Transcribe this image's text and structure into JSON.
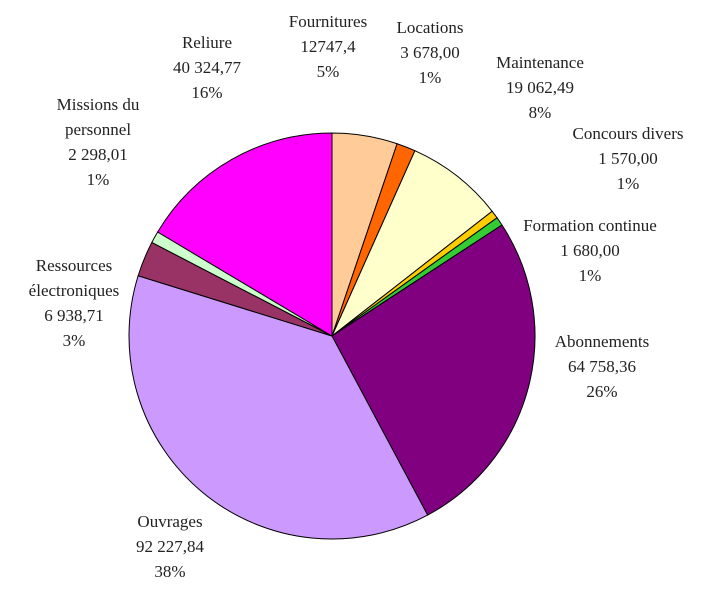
{
  "chart_data": {
    "type": "pie",
    "categories": [
      "Fournitures",
      "Locations",
      "Maintenance",
      "Concours divers",
      "Formation continue",
      "Abonnements",
      "Ouvrages",
      "Ressources électroniques",
      "Missions du personnel",
      "Reliure"
    ],
    "values": [
      12747.4,
      3678,
      19062.49,
      1570,
      1680,
      64758.36,
      92227.84,
      6938.71,
      2298.01,
      40324.77
    ],
    "value_labels": [
      "12747,4",
      "3 678,00",
      "19 062,49",
      "1 570,00",
      "1 680,00",
      "64 758,36",
      "92 227,84",
      "6 938,71",
      "2 298,01",
      "40 324,77"
    ],
    "percent_labels": [
      "5%",
      "1%",
      "8%",
      "1%",
      "1%",
      "26%",
      "38%",
      "3%",
      "1%",
      "16%"
    ],
    "colors": [
      "#FFCC99",
      "#FF6600",
      "#FFFFCC",
      "#FFCC00",
      "#33CC33",
      "#800080",
      "#CC99FF",
      "#993366",
      "#CCFFCC",
      "#FF00FF"
    ]
  }
}
